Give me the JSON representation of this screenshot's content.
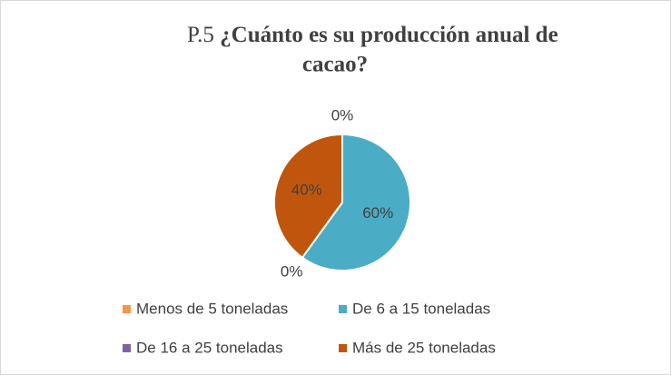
{
  "chart_data": {
    "type": "pie",
    "label": "P.5",
    "title": "¿Cuánto es su producción anual de cacao?",
    "categories": [
      "Menos de 5 toneladas",
      "De 6 a 15 toneladas",
      "De 16 a 25 toneladas",
      "Más de 25 toneladas"
    ],
    "values": [
      0,
      60,
      0,
      40
    ],
    "value_labels": [
      "0%",
      "60%",
      "0%",
      "40%"
    ],
    "colors": [
      "#f79646",
      "#4bacc6",
      "#8064a2",
      "#c0560d"
    ],
    "legend": "bottom"
  }
}
